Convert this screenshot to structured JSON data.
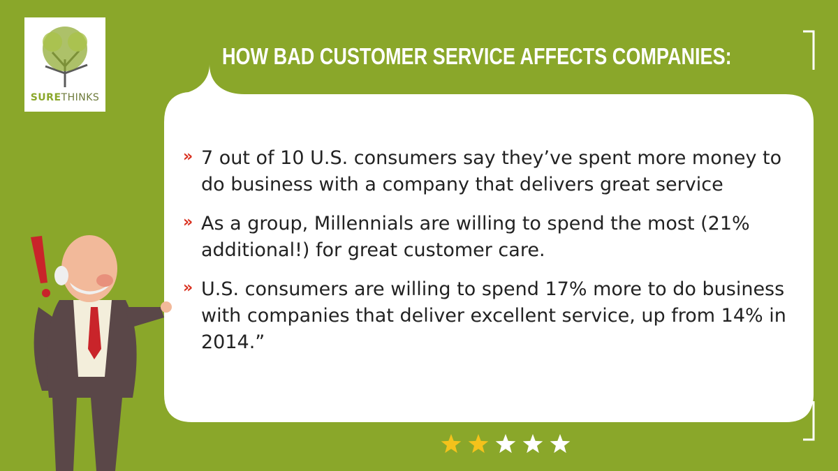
{
  "logo": {
    "part1": "SURE",
    "part2": "THINKS"
  },
  "title": "HOW BAD CUSTOMER SERVICE AFFECTS COMPANIES:",
  "bullets": [
    "7 out of 10 U.S. consumers say they’ve spent more money to do business with a company that delivers great service",
    "As a group, Millennials are willing to spend the most (21% additional!) for great customer care.",
    "U.S. consumers are willing to spend 17% more to do business with companies that deliver excellent service, up from 14% in 2014.”"
  ],
  "rating": {
    "value": 2,
    "max": 5
  }
}
